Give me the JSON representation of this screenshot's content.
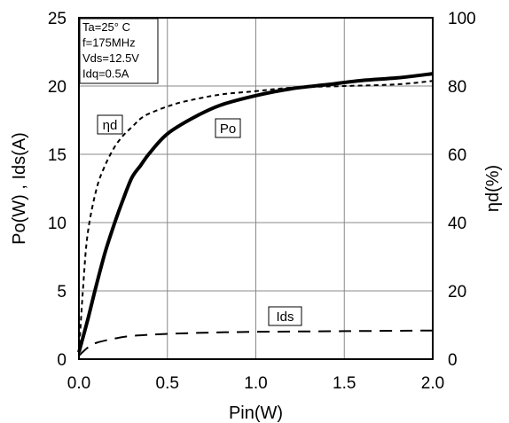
{
  "chart_data": {
    "type": "line",
    "xlabel": "Pin(W)",
    "ylabel": "Po(W) , Ids(A)",
    "ylabel_right": "ηd(%)",
    "xlim": [
      0,
      2.0
    ],
    "ylim": [
      0,
      25
    ],
    "ylim_right": [
      0,
      100
    ],
    "x_ticks": [
      "0.0",
      "0.5",
      "1.0",
      "1.5",
      "2.0"
    ],
    "y_ticks": [
      "0",
      "5",
      "10",
      "15",
      "20",
      "25"
    ],
    "y_ticks_right": [
      "0",
      "20",
      "40",
      "60",
      "80",
      "100"
    ],
    "grid": true,
    "conditions": [
      "Ta=25° C",
      "f=175MHz",
      "Vds=12.5V",
      "Idq=0.5A"
    ],
    "series": [
      {
        "name": "Po",
        "axis": "left",
        "style": "solid-thick",
        "x": [
          0,
          0.05,
          0.1,
          0.15,
          0.2,
          0.25,
          0.3,
          0.35,
          0.4,
          0.5,
          0.65,
          0.8,
          1.0,
          1.2,
          1.4,
          1.6,
          1.8,
          2.0
        ],
        "y": [
          0.5,
          2.9,
          5.5,
          7.9,
          9.9,
          11.7,
          13.3,
          14.2,
          15.1,
          16.5,
          17.7,
          18.6,
          19.3,
          19.8,
          20.1,
          20.4,
          20.6,
          20.9
        ]
      },
      {
        "name": "ηd",
        "axis": "right",
        "style": "short-dash",
        "x": [
          0,
          0.025,
          0.05,
          0.1,
          0.15,
          0.2,
          0.25,
          0.3,
          0.35,
          0.4,
          0.5,
          0.6,
          0.8,
          1.0,
          1.2,
          1.5,
          1.8,
          2.0
        ],
        "y": [
          2,
          22,
          37,
          50,
          57,
          62,
          65.5,
          68,
          70.5,
          72,
          74,
          75.5,
          77.5,
          78.5,
          79.5,
          80,
          80.5,
          81.5
        ]
      },
      {
        "name": "Ids",
        "axis": "left",
        "style": "long-dash",
        "x": [
          0,
          0.05,
          0.1,
          0.2,
          0.3,
          0.5,
          0.75,
          1.0,
          1.5,
          2.0
        ],
        "y": [
          0.25,
          0.85,
          1.2,
          1.5,
          1.7,
          1.85,
          1.95,
          2.0,
          2.05,
          2.1
        ]
      }
    ]
  }
}
